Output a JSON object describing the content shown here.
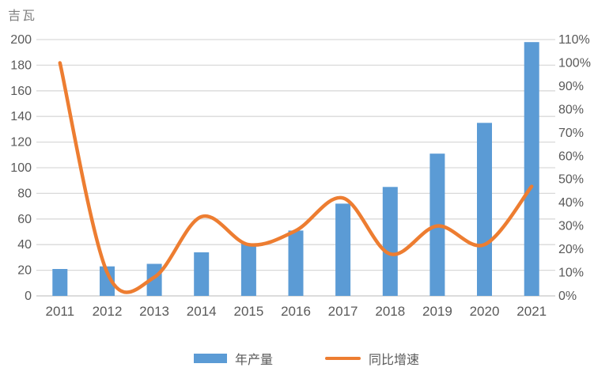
{
  "title": "吉瓦",
  "legend": {
    "bars": "年产量",
    "line": "同比增速"
  },
  "colors": {
    "bar": "#5B9BD5",
    "line": "#ED7D31",
    "grid": "#D9D9D9",
    "axis_line": "#C6C6C6",
    "axis_text": "#595959",
    "title_text": "#7F7F7F"
  },
  "chart_data": {
    "type": "bar+line combo",
    "title": "",
    "categories": [
      "2011",
      "2012",
      "2013",
      "2014",
      "2015",
      "2016",
      "2017",
      "2018",
      "2019",
      "2020",
      "2021"
    ],
    "series": [
      {
        "name": "年产量",
        "type": "bar",
        "axis": "left",
        "unit": "吉瓦",
        "color": "#5B9BD5",
        "values": [
          21,
          23,
          25,
          34,
          41,
          51,
          72,
          85,
          111,
          135,
          198
        ]
      },
      {
        "name": "同比增速",
        "type": "line",
        "axis": "right",
        "unit": "%",
        "color": "#ED7D31",
        "smooth": true,
        "values": [
          100,
          10,
          8,
          34,
          22,
          28,
          42,
          18,
          30,
          22,
          47
        ]
      }
    ],
    "left_axis": {
      "label": "吉瓦",
      "min": 0,
      "max": 200,
      "step": 20,
      "ticks": [
        "0",
        "20",
        "40",
        "60",
        "80",
        "100",
        "120",
        "140",
        "160",
        "180",
        "200"
      ]
    },
    "right_axis": {
      "min": 0,
      "max": 110,
      "step": 10,
      "ticks": [
        "0%",
        "10%",
        "20%",
        "30%",
        "40%",
        "50%",
        "60%",
        "70%",
        "80%",
        "90%",
        "100%",
        "110%"
      ]
    },
    "grid": "horizontal only",
    "legend_position": "bottom center"
  }
}
